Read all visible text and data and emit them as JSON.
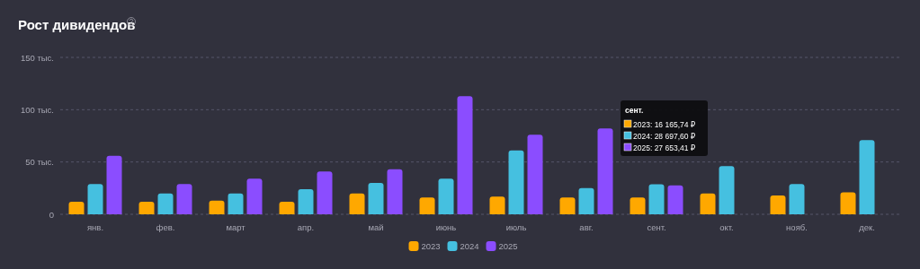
{
  "chart_data": {
    "type": "bar",
    "title": "Рост дивидендов",
    "categories": [
      "янв.",
      "фев.",
      "март",
      "апр.",
      "май",
      "июнь",
      "июль",
      "авг.",
      "сент.",
      "окт.",
      "нояб.",
      "дек."
    ],
    "series": [
      {
        "name": "2023",
        "color": "#ffa800",
        "values": [
          12,
          12,
          13,
          12,
          20,
          16,
          17,
          16,
          16.16574,
          20,
          18,
          21
        ]
      },
      {
        "name": "2024",
        "color": "#45c0e0",
        "values": [
          29,
          20,
          20,
          24,
          30,
          34,
          61,
          25,
          28.6976,
          46,
          29,
          71
        ]
      },
      {
        "name": "2025",
        "color": "#8b4dff",
        "values": [
          56,
          29,
          34,
          41,
          43,
          113,
          76,
          82,
          27.65341,
          null,
          null,
          null
        ]
      }
    ],
    "ylim": [
      0,
      150
    ],
    "yticks": [
      {
        "value": 0,
        "label": "0"
      },
      {
        "value": 50,
        "label": "50 тыс."
      },
      {
        "value": 100,
        "label": "100 тыс."
      },
      {
        "value": 150,
        "label": "150 тыс."
      }
    ],
    "grid": "y",
    "legend": "bottom",
    "annotations": [
      "сент.",
      "2023: 16 165,74 ₽",
      "2024: 28 697,60 ₽",
      "2025: 27 653,41 ₽"
    ]
  }
}
